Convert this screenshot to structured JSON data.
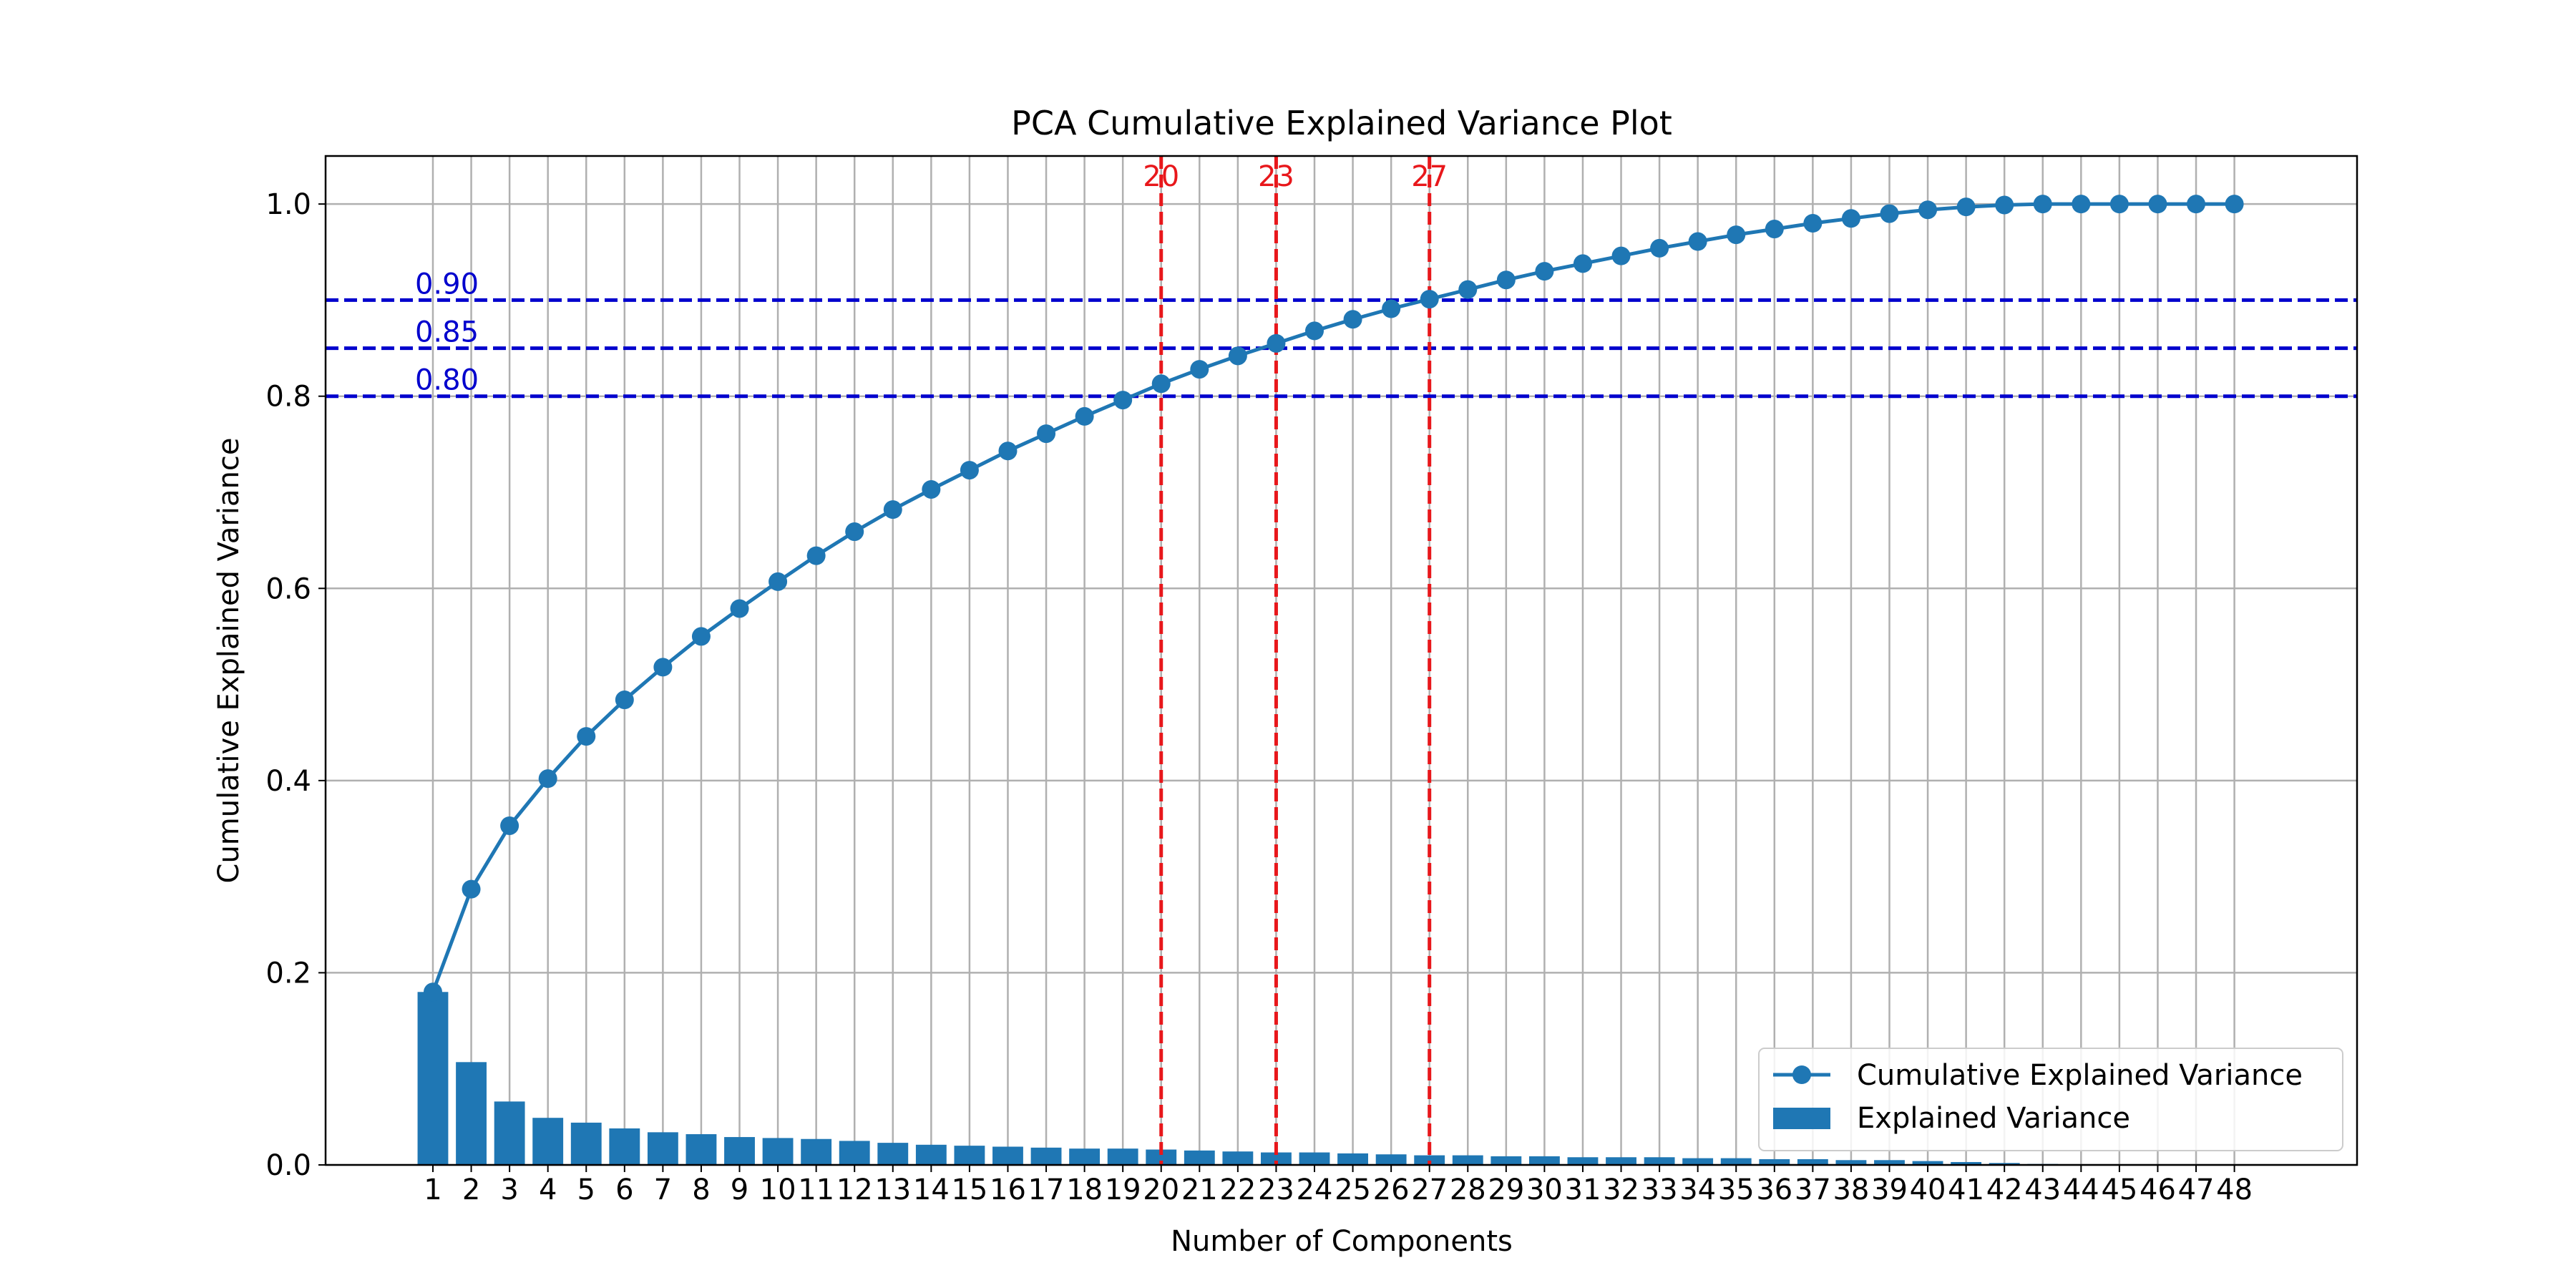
{
  "chart_data": {
    "type": "bar",
    "title": "PCA Cumulative Explained Variance Plot",
    "xlabel": "Number of Components",
    "ylabel": "Cumulative Explained Variance",
    "xlim": [
      -1.8,
      51.2
    ],
    "ylim": [
      0,
      1.05
    ],
    "yticks": [
      0.0,
      0.2,
      0.4,
      0.6,
      0.8,
      1.0
    ],
    "ytick_labels": [
      "0.0",
      "0.2",
      "0.4",
      "0.6",
      "0.8",
      "1.0"
    ],
    "categories": [
      "1",
      "2",
      "3",
      "4",
      "5",
      "6",
      "7",
      "8",
      "9",
      "10",
      "11",
      "12",
      "13",
      "14",
      "15",
      "16",
      "17",
      "18",
      "19",
      "20",
      "21",
      "22",
      "23",
      "24",
      "25",
      "26",
      "27",
      "28",
      "29",
      "30",
      "31",
      "32",
      "33",
      "34",
      "35",
      "36",
      "37",
      "38",
      "39",
      "40",
      "41",
      "42",
      "43",
      "44",
      "45",
      "46",
      "47",
      "48"
    ],
    "grid": true,
    "legend_location": "lower-right",
    "colors": {
      "series": "#1f77b4",
      "threshold": "#0000cd",
      "component_marker": "#e8171b",
      "grid": "#b0b0b0"
    },
    "series": [
      {
        "name": "Cumulative Explained Variance",
        "kind": "line",
        "marker": "circle",
        "values": [
          0.18,
          0.287,
          0.353,
          0.402,
          0.446,
          0.484,
          0.518,
          0.55,
          0.579,
          0.607,
          0.634,
          0.659,
          0.682,
          0.703,
          0.723,
          0.743,
          0.761,
          0.779,
          0.796,
          0.813,
          0.828,
          0.842,
          0.855,
          0.868,
          0.88,
          0.891,
          0.901,
          0.911,
          0.921,
          0.93,
          0.938,
          0.946,
          0.954,
          0.961,
          0.968,
          0.974,
          0.98,
          0.985,
          0.99,
          0.994,
          0.997,
          0.999,
          1.0,
          1.0,
          1.0,
          1.0,
          1.0,
          1.0
        ]
      },
      {
        "name": "Explained Variance",
        "kind": "bar",
        "values": [
          0.18,
          0.107,
          0.066,
          0.049,
          0.044,
          0.038,
          0.034,
          0.032,
          0.029,
          0.028,
          0.027,
          0.025,
          0.023,
          0.021,
          0.02,
          0.019,
          0.018,
          0.017,
          0.017,
          0.016,
          0.015,
          0.014,
          0.013,
          0.013,
          0.012,
          0.011,
          0.01,
          0.01,
          0.009,
          0.009,
          0.008,
          0.008,
          0.008,
          0.007,
          0.007,
          0.006,
          0.006,
          0.005,
          0.005,
          0.004,
          0.003,
          0.002,
          0.001,
          0.0,
          0.0,
          0.0,
          0.0,
          0.0
        ]
      }
    ],
    "thresholds": [
      {
        "value": 0.9,
        "label": "0.90"
      },
      {
        "value": 0.85,
        "label": "0.85"
      },
      {
        "value": 0.8,
        "label": "0.80"
      }
    ],
    "component_markers": [
      {
        "component": 20,
        "label": "20"
      },
      {
        "component": 23,
        "label": "23"
      },
      {
        "component": 27,
        "label": "27"
      }
    ]
  }
}
